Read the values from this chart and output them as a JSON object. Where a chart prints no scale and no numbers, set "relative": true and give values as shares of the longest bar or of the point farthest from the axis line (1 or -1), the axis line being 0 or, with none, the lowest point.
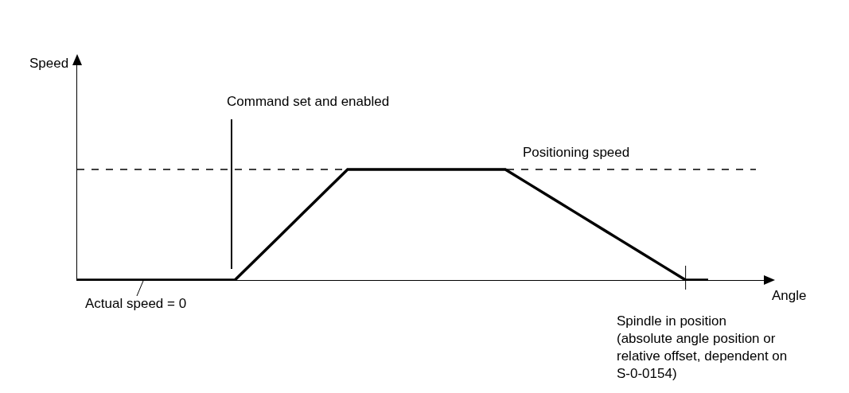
{
  "chart_data": {
    "type": "line",
    "relative": true,
    "xlabel": "Angle",
    "categories": [
      null,
      null,
      null,
      null,
      null,
      null,
      null,
      null,
      null,
      null,
      null,
      null,
      null,
      null,
      null,
      null,
      null,
      null,
      null,
      null,
      null,
      null,
      null,
      null,
      null,
      null,
      null,
      null,
      null
    ],
    "series": [
      {
        "color": "#000000",
        "values": [
          0,
          0,
          0,
          0,
          0,
          0,
          0,
          0,
          0.2,
          0.4,
          0.6,
          0.8,
          1,
          1,
          1,
          1,
          1,
          1,
          1,
          1,
          0.875,
          0.75,
          0.625,
          0.5,
          0.375,
          0.25,
          0.125,
          0,
          0
        ]
      }
    ],
    "ref_lines": [
      {
        "axis": "y",
        "value": 1,
        "label": "Positioning speed",
        "line_style": "dashed",
        "color": "#000000"
      }
    ],
    "annotations": [
      "Speed",
      "Command set and enabled",
      "Actual speed = 0",
      "Spindle in position\n(absolute angle position or\nrelative offset, dependent on\nS-0-0154)"
    ],
    "legend": false,
    "marker": "none",
    "line_style": "solid"
  }
}
